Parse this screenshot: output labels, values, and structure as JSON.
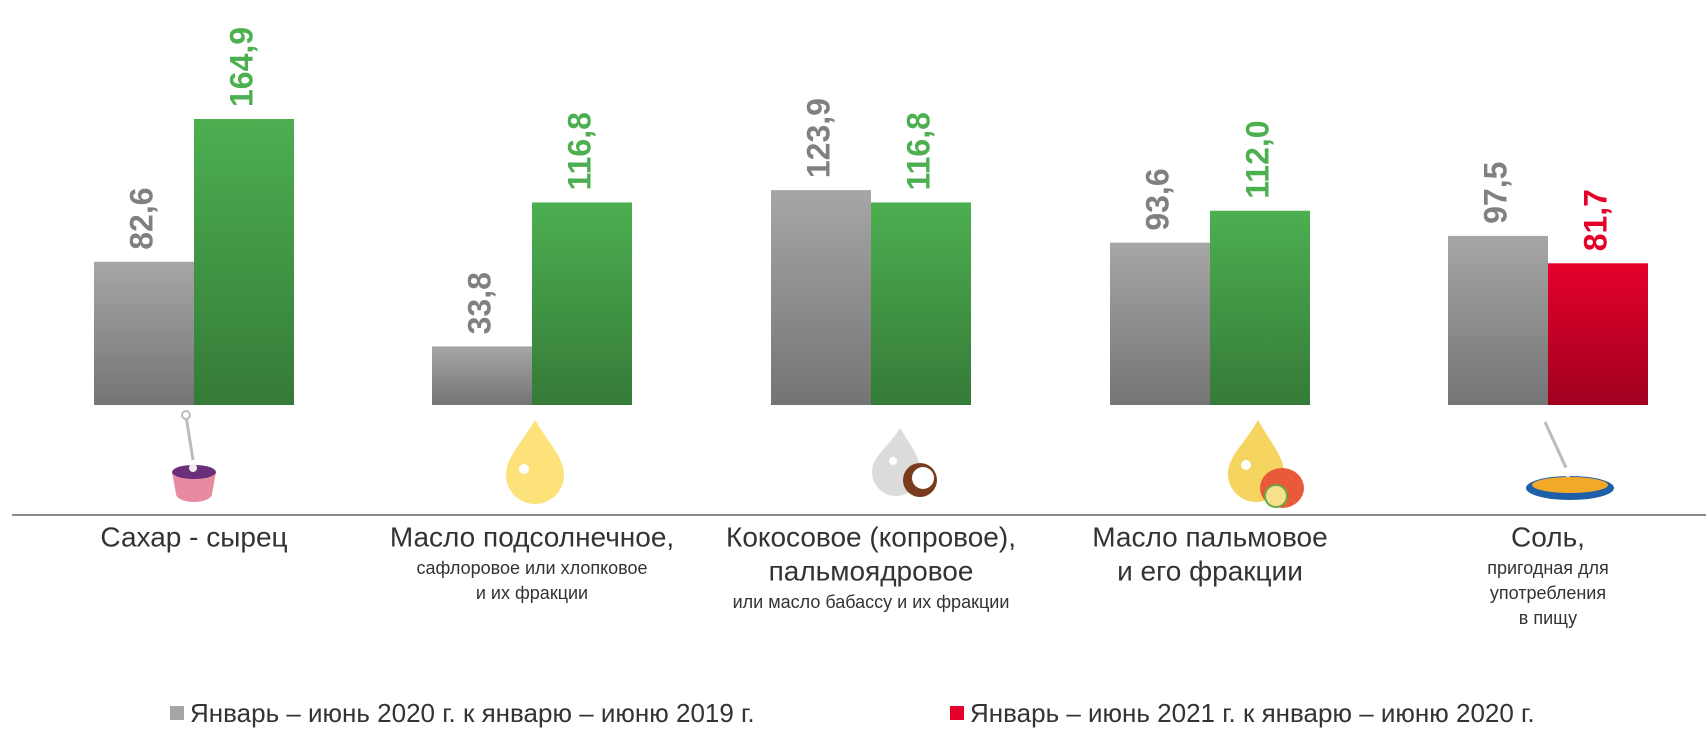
{
  "chart_data": {
    "type": "bar",
    "categories": [
      [
        "Сахар - сырец"
      ],
      [
        "Масло подсолнечное,"
      ],
      [
        "Кокосовое (копровое),",
        "пальмоядровое"
      ],
      [
        "Масло пальмовое",
        "и его фракции"
      ],
      [
        "Соль,"
      ]
    ],
    "category_notes": [
      [],
      [
        "сафлоровое или хлопковое",
        "и их фракции"
      ],
      [
        "или масло бабассу и их фракции"
      ],
      [],
      [
        "пригодная для",
        "употребления",
        "в пищу"
      ]
    ],
    "series": [
      {
        "name": "Январь – июнь 2020 г. к январю – июню 2019 г.",
        "color": "#a6a6a6",
        "label_color": "#808080",
        "values": [
          82.6,
          33.8,
          123.9,
          93.6,
          97.5
        ],
        "value_labels": [
          "82,6",
          "33,8",
          "123,9",
          "93,6",
          "97,5"
        ]
      },
      {
        "name": "Январь – июнь 2021 г. к январю – июню 2020 г.",
        "color": "#e4002b",
        "colors": [
          "#4caf50",
          "#4caf50",
          "#4caf50",
          "#4caf50",
          "#e4002b"
        ],
        "values": [
          164.9,
          116.8,
          116.8,
          112.0,
          81.7
        ],
        "value_labels": [
          "164,9",
          "116,8",
          "116,8",
          "112,0",
          "81,7"
        ]
      }
    ],
    "legend": "bottom"
  }
}
